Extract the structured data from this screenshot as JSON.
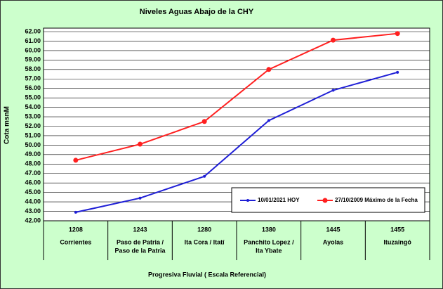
{
  "chart_data": {
    "type": "line",
    "title": "Niveles Aguas Abajo de la CHY",
    "x_label": "Progresiva Fluvial ( Escala Referencial)",
    "y_label": "Cota msnM",
    "categories": [
      [
        "1208",
        "Corrientes"
      ],
      [
        "1243",
        "Paso de Patria /",
        "Paso de la Patria"
      ],
      [
        "1280",
        "Ita Cora / Itatí"
      ],
      [
        "1380",
        "Panchito Lopez /",
        "Ita Ybate"
      ],
      [
        "1445",
        "Ayolas"
      ],
      [
        "1455",
        "Ituzaingó"
      ]
    ],
    "series": [
      {
        "name": "10/01/2021 HOY",
        "color": "#1f1fd6",
        "values": [
          42.9,
          44.4,
          46.7,
          52.6,
          55.8,
          57.7
        ]
      },
      {
        "name": "27/10/2009 Máximo de la Fecha",
        "color": "#ff2020",
        "values": [
          48.4,
          50.1,
          52.5,
          58.0,
          61.1,
          61.8
        ]
      }
    ],
    "ylim": [
      42,
      62
    ],
    "yticks": [
      {
        "value": 42,
        "label": "42.00"
      },
      {
        "value": 43,
        "label": "43.00"
      },
      {
        "value": 44,
        "label": "44.00"
      },
      {
        "value": 45,
        "label": "45.00"
      },
      {
        "value": 46,
        "label": "46.00"
      },
      {
        "value": 47,
        "label": "47.00"
      },
      {
        "value": 48,
        "label": "48.00"
      },
      {
        "value": 49,
        "label": "49.00"
      },
      {
        "value": 50,
        "label": "50.00"
      },
      {
        "value": 51,
        "label": "51.00"
      },
      {
        "value": 52,
        "label": "52.00"
      },
      {
        "value": 53,
        "label": "53.00"
      },
      {
        "value": 54,
        "label": "54.00"
      },
      {
        "value": 55,
        "label": "55.00"
      },
      {
        "value": 56,
        "label": "56.00"
      },
      {
        "value": 57,
        "label": "57.00"
      },
      {
        "value": 58,
        "label": "58.00"
      },
      {
        "value": 59,
        "label": "59.00"
      },
      {
        "value": 60,
        "label": "60.00"
      },
      {
        "value": 61,
        "label": "61.00"
      },
      {
        "value": 62,
        "label": "62.00"
      }
    ],
    "grid": true,
    "legend": "lower right"
  }
}
